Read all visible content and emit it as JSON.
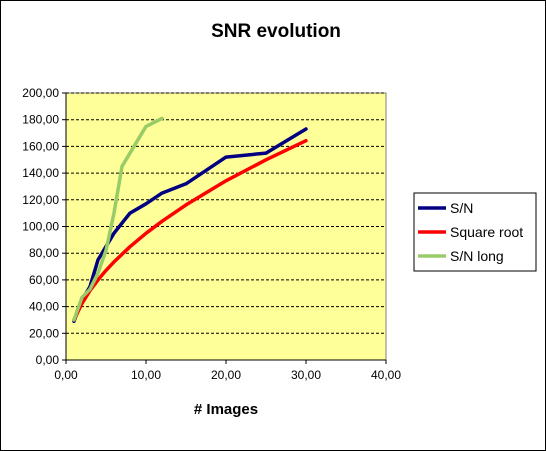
{
  "chart_data": {
    "type": "line",
    "title": "SNR evolution",
    "xlabel": "# Images",
    "ylabel": "",
    "xlim": [
      0,
      40
    ],
    "ylim": [
      0,
      200
    ],
    "x_ticks": [
      "0,00",
      "10,00",
      "20,00",
      "30,00",
      "40,00"
    ],
    "y_ticks": [
      "0,00",
      "20,00",
      "40,00",
      "60,00",
      "80,00",
      "100,00",
      "120,00",
      "140,00",
      "160,00",
      "180,00",
      "200,00"
    ],
    "grid": "horizontal dashed",
    "legend_position": "right",
    "plot_background": "#ffff99",
    "series": [
      {
        "name": "S/N",
        "color": "#000080",
        "x": [
          1,
          2,
          3,
          4,
          6,
          8,
          10,
          12,
          15,
          20,
          25,
          30
        ],
        "y": [
          29,
          45,
          55,
          75,
          95,
          110,
          117,
          125,
          132,
          152,
          155,
          173
        ]
      },
      {
        "name": "Square root",
        "color": "#ff0000",
        "x": [
          1,
          2,
          3,
          4,
          5,
          6,
          8,
          10,
          12,
          15,
          20,
          25,
          30
        ],
        "y": [
          30,
          42.4,
          52,
          60,
          67.1,
          73.5,
          84.9,
          94.9,
          103.9,
          116.2,
          134.2,
          150,
          164.3
        ]
      },
      {
        "name": "S/N long",
        "color": "#99cc66",
        "x": [
          1,
          2,
          3,
          4,
          5,
          6,
          7,
          10,
          12
        ],
        "y": [
          30,
          47,
          53,
          65,
          82,
          110,
          145,
          175,
          181
        ]
      }
    ]
  }
}
